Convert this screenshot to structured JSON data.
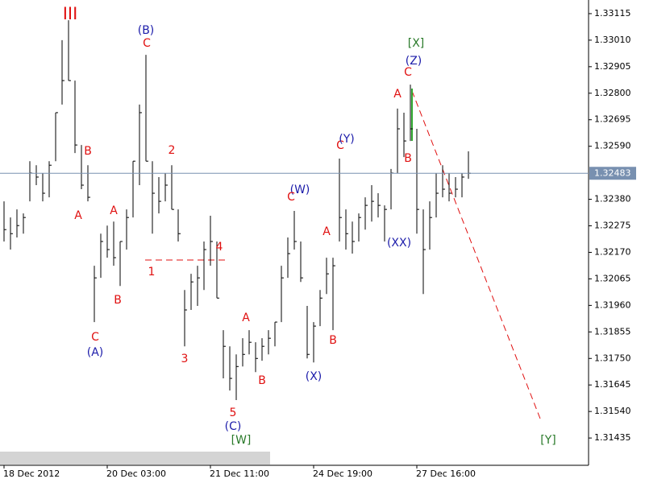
{
  "chart_data": {
    "type": "ohlc",
    "color": "#000000",
    "categories": [
      "18 Dec 2012",
      null,
      null,
      null,
      null,
      null,
      null,
      null,
      null,
      null,
      null,
      null,
      null,
      null,
      null,
      null,
      "20 Dec 03:00",
      null,
      null,
      null,
      null,
      null,
      null,
      null,
      null,
      null,
      null,
      null,
      null,
      null,
      null,
      null,
      "21 Dec 11:00",
      null,
      null,
      null,
      null,
      null,
      null,
      null,
      null,
      null,
      null,
      null,
      null,
      null,
      null,
      null,
      "24 Dec 19:00",
      null,
      null,
      null,
      null,
      null,
      null,
      null,
      null,
      null,
      null,
      null,
      null,
      null,
      null,
      null,
      "27 Dec 16:00",
      null,
      null,
      null,
      null,
      null,
      null,
      null,
      null
    ],
    "high": [
      1.32372,
      1.32308,
      1.3234,
      1.32324,
      1.32531,
      1.32515,
      1.32484,
      1.32531,
      1.32723,
      1.3301,
      1.33089,
      1.3285,
      1.32595,
      1.32515,
      1.32117,
      1.32244,
      1.32276,
      1.32292,
      1.32213,
      1.3234,
      1.32531,
      1.32755,
      1.32952,
      1.32531,
      1.32468,
      1.32484,
      1.32515,
      1.3234,
      1.32021,
      1.32085,
      1.32117,
      1.32213,
      1.32315,
      1.32213,
      1.31862,
      1.31798,
      1.31766,
      1.3183,
      1.31862,
      1.31814,
      1.3183,
      1.31862,
      1.31894,
      1.32117,
      1.32229,
      1.32334,
      1.32213,
      1.31958,
      1.31894,
      1.32021,
      1.32149,
      1.32149,
      1.32541,
      1.3234,
      1.32292,
      1.32324,
      1.32388,
      1.32436,
      1.32404,
      1.32356,
      1.325,
      1.32739,
      1.32723,
      1.32834,
      1.32659,
      1.3234,
      1.32372,
      1.32484,
      1.32515,
      1.32484,
      1.32468,
      1.32484,
      1.3257
    ],
    "low": [
      1.32213,
      1.32181,
      1.32229,
      1.32244,
      1.32372,
      1.32436,
      1.32372,
      1.32388,
      1.32531,
      1.32755,
      1.3285,
      1.32563,
      1.3242,
      1.32372,
      1.31894,
      1.32069,
      1.32149,
      1.32117,
      1.32037,
      1.32181,
      1.32308,
      1.32436,
      1.32531,
      1.32244,
      1.32324,
      1.32372,
      1.3234,
      1.32213,
      1.31798,
      1.31942,
      1.31958,
      1.32021,
      1.32117,
      1.31989,
      1.31671,
      1.31623,
      1.31585,
      1.31718,
      1.31766,
      1.31696,
      1.31741,
      1.31766,
      1.31798,
      1.31894,
      1.32069,
      1.32181,
      1.32053,
      1.3175,
      1.31734,
      1.31878,
      1.32005,
      1.31862,
      1.32213,
      1.32181,
      1.32165,
      1.32213,
      1.3226,
      1.32292,
      1.32308,
      1.32213,
      1.3234,
      1.32484,
      1.32547,
      1.32611,
      1.32244,
      1.32005,
      1.32181,
      1.32308,
      1.32388,
      1.32372,
      1.32388,
      1.32388,
      1.32461
    ],
    "close": [
      1.3226,
      1.32244,
      1.32276,
      1.32308,
      1.32484,
      1.32468,
      1.32404,
      1.32515,
      1.32723,
      1.3285,
      1.3285,
      1.32595,
      1.32436,
      1.32388,
      1.32069,
      1.32213,
      1.32181,
      1.32149,
      1.32213,
      1.32308,
      1.32531,
      1.32723,
      1.32531,
      1.32404,
      1.32372,
      1.32436,
      1.3234,
      1.32244,
      1.31942,
      1.32053,
      1.32069,
      1.32181,
      1.32213,
      1.31989,
      1.31798,
      1.31671,
      1.31718,
      1.31766,
      1.31814,
      1.3175,
      1.31798,
      1.3183,
      1.31894,
      1.32069,
      1.32165,
      1.32213,
      1.32069,
      1.31766,
      1.31878,
      1.31989,
      1.32085,
      1.32117,
      1.32308,
      1.32244,
      1.32213,
      1.32308,
      1.32356,
      1.32372,
      1.32356,
      1.3234,
      1.32484,
      1.32659,
      1.32611,
      1.32659,
      1.3234,
      1.32181,
      1.32308,
      1.32404,
      1.3242,
      1.32404,
      1.3242,
      1.32468,
      1.32483
    ],
    "ylim": [
      1.31327,
      1.33169
    ],
    "yticks": [
      {
        "value": 1.33115,
        "label": "1.33115"
      },
      {
        "value": 1.3301,
        "label": "1.33010"
      },
      {
        "value": 1.32905,
        "label": "1.32905"
      },
      {
        "value": 1.328,
        "label": "1.32800"
      },
      {
        "value": 1.32695,
        "label": "1.32695"
      },
      {
        "value": 1.3259,
        "label": "1.32590"
      },
      {
        "value": 1.3238,
        "label": "1.32380"
      },
      {
        "value": 1.32275,
        "label": "1.32275"
      },
      {
        "value": 1.3217,
        "label": "1.32170"
      },
      {
        "value": 1.32065,
        "label": "1.32065"
      },
      {
        "value": 1.3196,
        "label": "1.31960"
      },
      {
        "value": 1.31855,
        "label": "1.31855"
      },
      {
        "value": 1.3175,
        "label": "1.31750"
      },
      {
        "value": 1.31645,
        "label": "1.31645"
      },
      {
        "value": 1.3154,
        "label": "1.31540"
      },
      {
        "value": 1.31435,
        "label": "1.31435"
      }
    ],
    "price_line": {
      "value": 1.32483,
      "label": "1.32483"
    },
    "annotations": [
      {
        "text": "III",
        "color": "#e01010"
      },
      {
        "text": "(B)",
        "color": "#1c1caa"
      },
      {
        "text": "C",
        "color": "#e01010"
      },
      {
        "text": "[X]",
        "color": "#2a7a2a"
      },
      {
        "text": "(Z)",
        "color": "#1c1caa"
      },
      {
        "text": "C",
        "color": "#e01010"
      },
      {
        "text": "A",
        "color": "#e01010"
      },
      {
        "text": "B",
        "color": "#e01010"
      },
      {
        "text": "2",
        "color": "#e01010"
      },
      {
        "text": "C",
        "color": "#e01010"
      },
      {
        "text": "(Y)",
        "color": "#1c1caa"
      },
      {
        "text": "B",
        "color": "#e01010"
      },
      {
        "text": "A",
        "color": "#e01010"
      },
      {
        "text": "A",
        "color": "#e01010"
      },
      {
        "text": "(W)",
        "color": "#1c1caa"
      },
      {
        "text": "C",
        "color": "#e01010"
      },
      {
        "text": "4",
        "color": "#e01010"
      },
      {
        "text": "1",
        "color": "#e01010"
      },
      {
        "text": "A",
        "color": "#e01010"
      },
      {
        "text": "(XX)",
        "color": "#1c1caa"
      },
      {
        "text": "B",
        "color": "#e01010"
      },
      {
        "text": "A",
        "color": "#e01010"
      },
      {
        "text": "C",
        "color": "#e01010"
      },
      {
        "text": "B",
        "color": "#e01010"
      },
      {
        "text": "(A)",
        "color": "#1c1caa"
      },
      {
        "text": "3",
        "color": "#e01010"
      },
      {
        "text": "B",
        "color": "#e01010"
      },
      {
        "text": "(X)",
        "color": "#1c1caa"
      },
      {
        "text": "5",
        "color": "#e01010"
      },
      {
        "text": "(C)",
        "color": "#1c1caa"
      },
      {
        "text": "[W]",
        "color": "#2a7a2a"
      },
      {
        "text": "[Y]",
        "color": "#2a7a2a"
      }
    ]
  }
}
